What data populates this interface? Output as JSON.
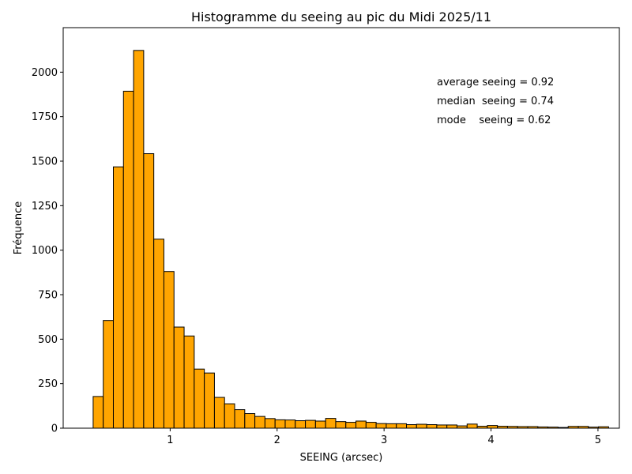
{
  "chart_data": {
    "type": "bar",
    "title": "Histogramme du seeing au pic du Midi  2025/11",
    "xlabel": "SEEING (arcsec)",
    "ylabel": "Fréquence",
    "xlim": [
      0.0,
      5.2
    ],
    "ylim": [
      0,
      2250
    ],
    "xticks": [
      1,
      2,
      3,
      4,
      5
    ],
    "yticks": [
      0,
      250,
      500,
      750,
      1000,
      1250,
      1500,
      1750,
      2000
    ],
    "grid": false,
    "bar_color": "#FFA500",
    "edge_color": "#000000",
    "bins": {
      "start": 0.28,
      "width": 0.0945,
      "counts": [
        178,
        605,
        1468,
        1893,
        2122,
        1542,
        1062,
        880,
        568,
        518,
        332,
        310,
        173,
        137,
        104,
        82,
        66,
        54,
        47,
        46,
        42,
        44,
        40,
        55,
        37,
        33,
        40,
        33,
        26,
        25,
        25,
        20,
        22,
        20,
        18,
        18,
        13,
        23,
        11,
        15,
        11,
        10,
        9,
        9,
        7,
        6,
        4,
        10,
        10,
        6,
        8
      ]
    },
    "annotations": [
      "average seeing = 0.92",
      "median  seeing = 0.74",
      "mode    seeing = 0.62"
    ]
  }
}
